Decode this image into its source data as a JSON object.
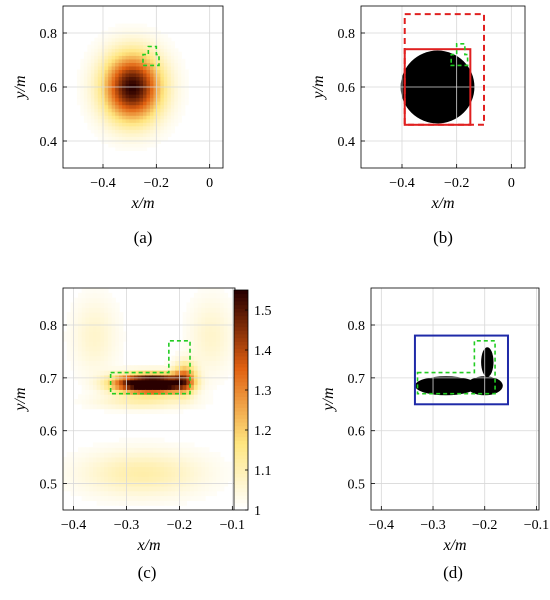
{
  "colors": {
    "target_dashed": "#22cc22",
    "box_red": "#e02020",
    "box_blue": "#1f2aa8",
    "heat_low": "#ffffff",
    "heat_mid": "#ffe680",
    "heat_high": "#e06010",
    "heat_max": "#2a0000",
    "grid": "#d8d8d8"
  },
  "chart_data": [
    {
      "type": "heatmap",
      "caption": "(a)",
      "xlabel": "x/m",
      "ylabel": "y/m",
      "xlim": [
        -0.55,
        0.05
      ],
      "ylim": [
        0.3,
        0.9
      ],
      "xticks": [
        -0.4,
        -0.2,
        0
      ],
      "xtick_labels": [
        "−0.4",
        "−0.2",
        "0"
      ],
      "yticks": [
        0.4,
        0.6,
        0.8
      ],
      "ytick_labels": [
        "0.4",
        "0.6",
        "0.8"
      ],
      "grid": true,
      "blobs": [
        {
          "x": -0.29,
          "y": 0.6,
          "sx": 0.075,
          "sy": 0.085,
          "amp": 1.0
        }
      ],
      "target_outline": [
        [
          -0.25,
          0.69
        ],
        [
          -0.25,
          0.72
        ],
        [
          -0.23,
          0.72
        ],
        [
          -0.23,
          0.75
        ],
        [
          -0.2,
          0.75
        ],
        [
          -0.2,
          0.72
        ],
        [
          -0.19,
          0.72
        ],
        [
          -0.19,
          0.68
        ],
        [
          -0.25,
          0.68
        ]
      ]
    },
    {
      "type": "heatmap",
      "caption": "(b)",
      "xlabel": "x/m",
      "ylabel": "y/m",
      "xlim": [
        -0.55,
        0.05
      ],
      "ylim": [
        0.3,
        0.9
      ],
      "xticks": [
        -0.4,
        -0.2,
        0
      ],
      "xtick_labels": [
        "−0.4",
        "−0.2",
        "0"
      ],
      "yticks": [
        0.4,
        0.6,
        0.8
      ],
      "ytick_labels": [
        "0.4",
        "0.6",
        "0.8"
      ],
      "grid": true,
      "binary_disk": {
        "x": -0.27,
        "y": 0.6,
        "r": 0.135
      },
      "solid_box": [
        -0.39,
        -0.15,
        0.46,
        0.74
      ],
      "dashed_box": [
        -0.39,
        -0.1,
        0.46,
        0.87
      ],
      "target_outline": [
        [
          -0.22,
          0.69
        ],
        [
          -0.22,
          0.72
        ],
        [
          -0.2,
          0.72
        ],
        [
          -0.2,
          0.76
        ],
        [
          -0.17,
          0.76
        ],
        [
          -0.17,
          0.72
        ],
        [
          -0.16,
          0.72
        ],
        [
          -0.16,
          0.68
        ],
        [
          -0.22,
          0.68
        ]
      ]
    },
    {
      "type": "heatmap",
      "caption": "(c)",
      "xlabel": "x/m",
      "ylabel": "y/m",
      "xlim": [
        -0.42,
        -0.095
      ],
      "ylim": [
        0.45,
        0.87
      ],
      "xticks": [
        -0.4,
        -0.3,
        -0.2,
        -0.1
      ],
      "xtick_labels": [
        "−0.4",
        "−0.3",
        "−0.2",
        "−0.1"
      ],
      "yticks": [
        0.5,
        0.6,
        0.7,
        0.8
      ],
      "ytick_labels": [
        "0.5",
        "0.6",
        "0.7",
        "0.8"
      ],
      "grid": true,
      "blobs": [
        {
          "x": -0.28,
          "y": 0.69,
          "sx": 0.035,
          "sy": 0.012,
          "amp": 1.0
        },
        {
          "x": -0.23,
          "y": 0.69,
          "sx": 0.03,
          "sy": 0.012,
          "amp": 0.95
        },
        {
          "x": -0.19,
          "y": 0.7,
          "sx": 0.015,
          "sy": 0.02,
          "amp": 0.55
        },
        {
          "x": -0.27,
          "y": 0.655,
          "sx": 0.06,
          "sy": 0.01,
          "amp": 0.18
        },
        {
          "x": -0.27,
          "y": 0.52,
          "sx": 0.08,
          "sy": 0.03,
          "amp": 0.2
        },
        {
          "x": -0.36,
          "y": 0.78,
          "sx": 0.03,
          "sy": 0.05,
          "amp": 0.12
        },
        {
          "x": -0.14,
          "y": 0.78,
          "sx": 0.03,
          "sy": 0.05,
          "amp": 0.12
        }
      ],
      "target_outline": [
        [
          -0.33,
          0.71
        ],
        [
          -0.22,
          0.71
        ],
        [
          -0.22,
          0.77
        ],
        [
          -0.18,
          0.77
        ],
        [
          -0.18,
          0.67
        ],
        [
          -0.33,
          0.67
        ],
        [
          -0.33,
          0.71
        ]
      ],
      "colorbar": {
        "range": [
          1.0,
          1.55
        ],
        "ticks": [
          1,
          1.1,
          1.2,
          1.3,
          1.4,
          1.5
        ],
        "tick_labels": [
          "1",
          "1.1",
          "1.2",
          "1.3",
          "1.4",
          "1.5"
        ]
      }
    },
    {
      "type": "heatmap",
      "caption": "(d)",
      "xlabel": "x/m",
      "ylabel": "y/m",
      "xlim": [
        -0.42,
        -0.095
      ],
      "ylim": [
        0.45,
        0.87
      ],
      "xticks": [
        -0.4,
        -0.3,
        -0.2,
        -0.1
      ],
      "xtick_labels": [
        "−0.4",
        "−0.3",
        "−0.2",
        "−0.1"
      ],
      "yticks": [
        0.5,
        0.6,
        0.7,
        0.8
      ],
      "ytick_labels": [
        "0.5",
        "0.6",
        "0.7",
        "0.8"
      ],
      "grid": true,
      "binary_shape": [
        {
          "type": "ellipse",
          "x": -0.275,
          "y": 0.685,
          "rx": 0.06,
          "ry": 0.018
        },
        {
          "type": "ellipse",
          "x": -0.2,
          "y": 0.685,
          "rx": 0.035,
          "ry": 0.018
        },
        {
          "type": "ellipse",
          "x": -0.195,
          "y": 0.73,
          "rx": 0.012,
          "ry": 0.028
        }
      ],
      "solid_box": [
        -0.335,
        -0.155,
        0.65,
        0.78
      ],
      "target_outline": [
        [
          -0.33,
          0.71
        ],
        [
          -0.22,
          0.71
        ],
        [
          -0.22,
          0.77
        ],
        [
          -0.18,
          0.77
        ],
        [
          -0.18,
          0.67
        ],
        [
          -0.33,
          0.67
        ],
        [
          -0.33,
          0.71
        ]
      ]
    }
  ]
}
